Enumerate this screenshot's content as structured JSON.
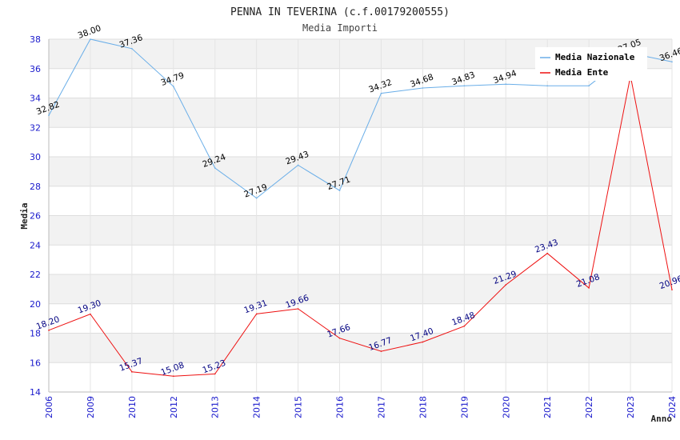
{
  "chart_data": {
    "type": "line",
    "title": "PENNA IN TEVERINA (c.f.00179200555)",
    "subtitle": "Media Importi",
    "xlabel": "Anno",
    "ylabel": "Media",
    "ylim": [
      14,
      38
    ],
    "yticks": [
      "14",
      "16",
      "18",
      "20",
      "22",
      "24",
      "26",
      "28",
      "30",
      "32",
      "34",
      "36",
      "38"
    ],
    "categories": [
      "2006",
      "2009",
      "2010",
      "2012",
      "2013",
      "2014",
      "2015",
      "2016",
      "2017",
      "2018",
      "2019",
      "2020",
      "2021",
      "2022",
      "2023",
      "2024"
    ],
    "grid": true,
    "legend_position": "top-right",
    "series": [
      {
        "name": "Media Nazionale",
        "color": "#6aaee8",
        "label_color": "#000000",
        "values": [
          32.82,
          38.0,
          37.36,
          34.79,
          29.24,
          27.19,
          29.43,
          27.71,
          34.32,
          34.68,
          34.83,
          34.94,
          34.83,
          34.83,
          37.05,
          36.46
        ],
        "labels": [
          "32.82",
          "38.00",
          "37.36",
          "34.79",
          "29.24",
          "27.19",
          "29.43",
          "27.71",
          "34.32",
          "34.68",
          "34.83",
          "34.94",
          "",
          "",
          "37.05",
          "36.46"
        ]
      },
      {
        "name": "Media Ente",
        "color": "#ee1111",
        "label_color": "#000080",
        "values": [
          18.2,
          19.3,
          15.37,
          15.08,
          15.23,
          19.31,
          19.66,
          17.66,
          16.77,
          17.4,
          18.48,
          21.29,
          23.43,
          21.08,
          35.5,
          20.96
        ],
        "labels": [
          "18.20",
          "19.30",
          "15.37",
          "15.08",
          "15.23",
          "19.31",
          "19.66",
          "17.66",
          "16.77",
          "17.40",
          "18.48",
          "21.29",
          "23.43",
          "21.08",
          "",
          "20.96"
        ]
      }
    ]
  }
}
